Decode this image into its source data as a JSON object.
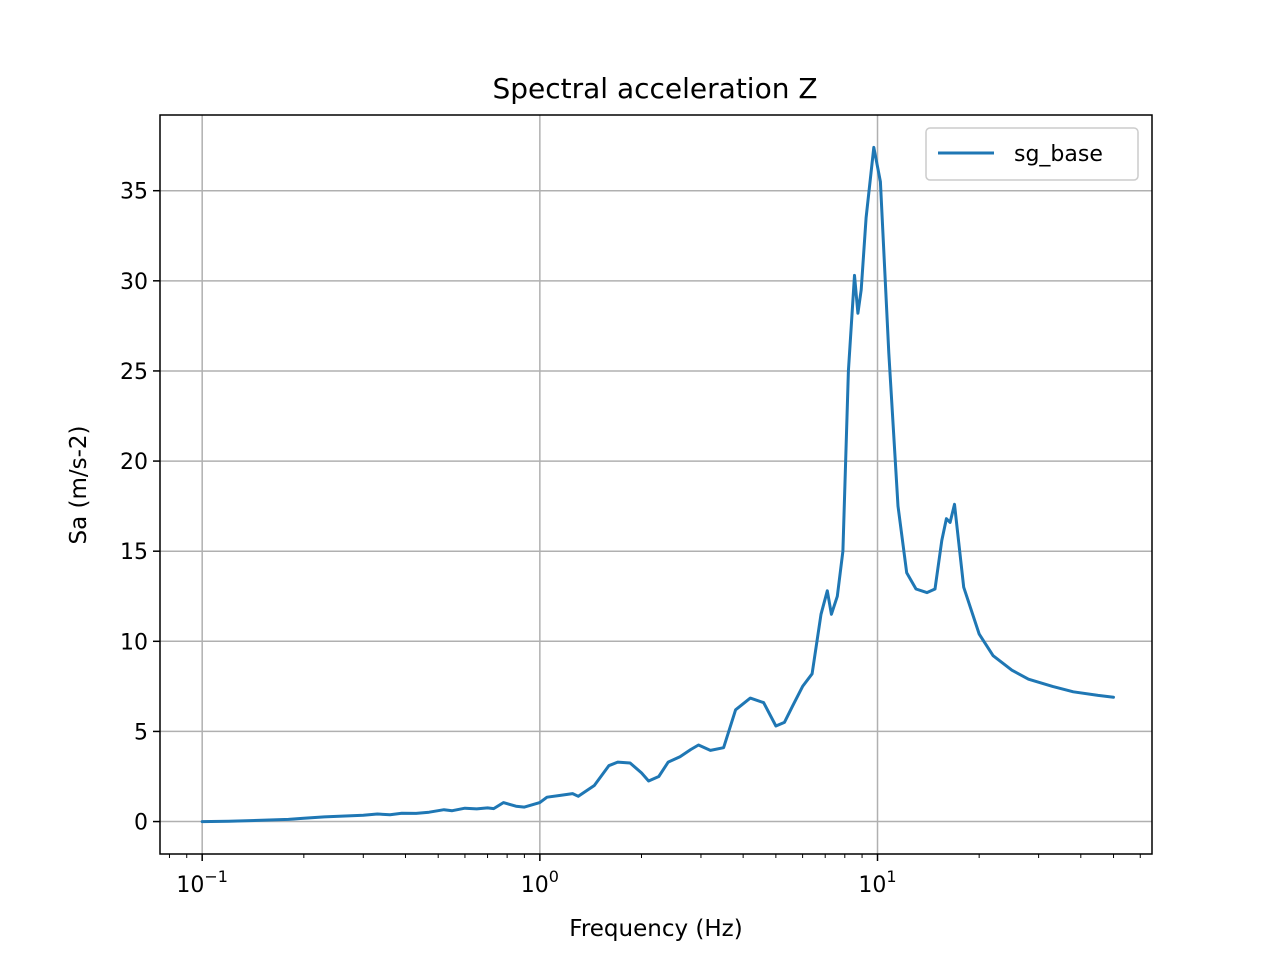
{
  "chart_data": {
    "type": "line",
    "title": "Spectral acceleration Z",
    "xlabel": "Frequency (Hz)",
    "ylabel": "Sa (m/s-2)",
    "xscale": "log",
    "xlim": [
      0.075,
      65
    ],
    "ylim": [
      -1.8,
      39.2
    ],
    "grid": true,
    "legend_position": "top-right",
    "x_ticks": [
      {
        "value": 0.1,
        "base": "10",
        "exp": "−1"
      },
      {
        "value": 1,
        "base": "10",
        "exp": "0"
      },
      {
        "value": 10,
        "base": "10",
        "exp": "1"
      }
    ],
    "y_ticks": [
      0,
      5,
      10,
      15,
      20,
      25,
      30,
      35
    ],
    "series": [
      {
        "name": "sg_base",
        "color": "#1f77b4",
        "points": [
          [
            0.1,
            0.0
          ],
          [
            0.12,
            0.02
          ],
          [
            0.15,
            0.07
          ],
          [
            0.18,
            0.12
          ],
          [
            0.2,
            0.18
          ],
          [
            0.23,
            0.26
          ],
          [
            0.26,
            0.3
          ],
          [
            0.3,
            0.35
          ],
          [
            0.33,
            0.42
          ],
          [
            0.36,
            0.38
          ],
          [
            0.39,
            0.46
          ],
          [
            0.43,
            0.45
          ],
          [
            0.47,
            0.52
          ],
          [
            0.52,
            0.66
          ],
          [
            0.55,
            0.6
          ],
          [
            0.6,
            0.74
          ],
          [
            0.65,
            0.7
          ],
          [
            0.7,
            0.76
          ],
          [
            0.73,
            0.72
          ],
          [
            0.78,
            1.05
          ],
          [
            0.85,
            0.85
          ],
          [
            0.9,
            0.8
          ],
          [
            1.0,
            1.05
          ],
          [
            1.05,
            1.35
          ],
          [
            1.15,
            1.45
          ],
          [
            1.25,
            1.55
          ],
          [
            1.3,
            1.4
          ],
          [
            1.45,
            2.0
          ],
          [
            1.6,
            3.1
          ],
          [
            1.7,
            3.3
          ],
          [
            1.85,
            3.25
          ],
          [
            2.0,
            2.7
          ],
          [
            2.1,
            2.25
          ],
          [
            2.25,
            2.5
          ],
          [
            2.4,
            3.3
          ],
          [
            2.6,
            3.6
          ],
          [
            2.8,
            4.0
          ],
          [
            2.95,
            4.25
          ],
          [
            3.2,
            3.95
          ],
          [
            3.5,
            4.1
          ],
          [
            3.8,
            6.2
          ],
          [
            4.2,
            6.85
          ],
          [
            4.6,
            6.6
          ],
          [
            5.0,
            5.3
          ],
          [
            5.3,
            5.5
          ],
          [
            5.6,
            6.4
          ],
          [
            6.0,
            7.5
          ],
          [
            6.4,
            8.2
          ],
          [
            6.8,
            11.5
          ],
          [
            7.1,
            12.8
          ],
          [
            7.3,
            11.5
          ],
          [
            7.6,
            12.5
          ],
          [
            7.9,
            15.0
          ],
          [
            8.2,
            25.0
          ],
          [
            8.55,
            30.3
          ],
          [
            8.75,
            28.2
          ],
          [
            8.95,
            29.5
          ],
          [
            9.25,
            33.5
          ],
          [
            9.75,
            37.4
          ],
          [
            10.2,
            35.5
          ],
          [
            10.8,
            26.0
          ],
          [
            11.5,
            17.5
          ],
          [
            12.2,
            13.8
          ],
          [
            13.0,
            12.9
          ],
          [
            14.0,
            12.7
          ],
          [
            14.8,
            12.9
          ],
          [
            15.5,
            15.6
          ],
          [
            16.0,
            16.8
          ],
          [
            16.4,
            16.6
          ],
          [
            16.9,
            17.6
          ],
          [
            17.4,
            15.5
          ],
          [
            18.0,
            13.0
          ],
          [
            20.0,
            10.4
          ],
          [
            22.0,
            9.2
          ],
          [
            25.0,
            8.4
          ],
          [
            28.0,
            7.9
          ],
          [
            33.0,
            7.5
          ],
          [
            38.0,
            7.2
          ],
          [
            45.0,
            7.0
          ],
          [
            50.0,
            6.9
          ]
        ]
      }
    ]
  }
}
